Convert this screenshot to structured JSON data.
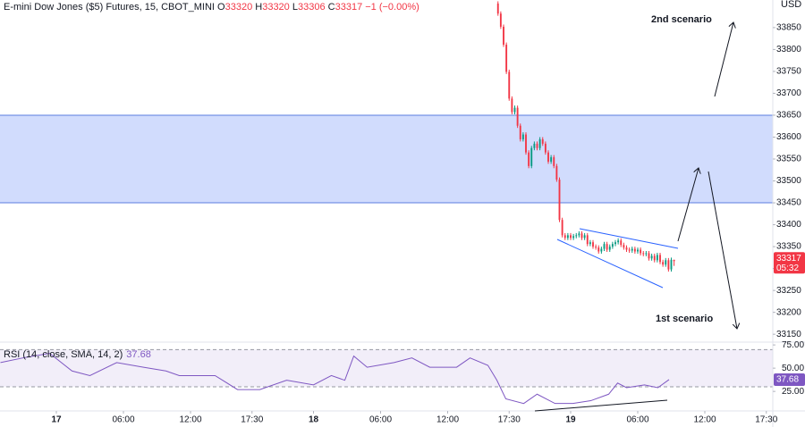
{
  "chart_data": [
    {
      "type": "candlestick",
      "title": "E-mini Dow Jones ($5) Futures, 15, CBOT_MINI",
      "ohlc_labels": [
        "O",
        "H",
        "L",
        "C"
      ],
      "change": "−1 (−0.00%)",
      "currency": "USD",
      "countdown": "05:32",
      "annotations": [
        "2nd scenario",
        "1st scenario"
      ],
      "up_color": "#089981",
      "down_color": "#f23645",
      "zones": [
        {
          "from": 33450,
          "to": 33650,
          "color": "#d1dcfd"
        }
      ],
      "x": [
        39.5,
        39.75,
        40,
        40.25,
        40.5,
        40.75,
        41,
        41.25,
        41.5,
        41.75,
        42,
        42.25,
        42.5,
        42.75,
        43,
        43.25,
        43.5,
        43.75,
        44,
        44.25,
        44.5,
        44.75,
        45,
        45.25,
        45.5,
        45.75,
        46,
        46.25,
        46.5,
        46.75,
        47,
        47.25,
        47.5,
        47.75,
        48,
        48.25,
        48.5,
        48.75,
        49,
        49.25,
        49.5,
        49.75,
        50,
        50.25,
        50.5,
        50.75,
        51,
        51.25,
        51.5,
        51.75,
        52,
        52.25,
        52.5,
        52.75,
        53,
        53.25,
        53.5,
        53.75,
        54,
        54.25,
        54.5,
        54.75,
        55,
        55.25
      ],
      "open": [
        33905,
        33882,
        33852,
        33811,
        33749,
        33688,
        33657,
        33667,
        33626,
        33595,
        33606,
        33565,
        33534,
        33575,
        33585,
        33575,
        33595,
        33585,
        33565,
        33544,
        33554,
        33534,
        33503,
        33411,
        33376,
        33370,
        33376,
        33370,
        33374,
        33376,
        33380,
        33370,
        33376,
        33356,
        33360,
        33350,
        33348,
        33339,
        33345,
        33356,
        33343,
        33350,
        33356,
        33360,
        33364,
        33354,
        33348,
        33343,
        33341,
        33345,
        33339,
        33343,
        33335,
        33333,
        33335,
        33323,
        33329,
        33319,
        33331,
        33315,
        33309,
        33319,
        33298,
        33320
      ],
      "high": [
        33910,
        33887,
        33857,
        33816,
        33754,
        33693,
        33672,
        33672,
        33631,
        33611,
        33611,
        33570,
        33580,
        33590,
        33590,
        33600,
        33600,
        33590,
        33570,
        33559,
        33559,
        33539,
        33508,
        33416,
        33381,
        33381,
        33381,
        33379,
        33381,
        33385,
        33385,
        33381,
        33381,
        33365,
        33365,
        33355,
        33353,
        33350,
        33361,
        33361,
        33355,
        33361,
        33365,
        33369,
        33369,
        33359,
        33353,
        33348,
        33350,
        33350,
        33348,
        33348,
        33340,
        33340,
        33340,
        33334,
        33334,
        33336,
        33336,
        33320,
        33324,
        33324,
        33325,
        33320
      ],
      "low": [
        33877,
        33847,
        33806,
        33744,
        33683,
        33652,
        33652,
        33621,
        33590,
        33590,
        33560,
        33529,
        33529,
        33570,
        33570,
        33570,
        33580,
        33560,
        33539,
        33539,
        33529,
        33498,
        33406,
        33371,
        33365,
        33365,
        33365,
        33365,
        33369,
        33371,
        33365,
        33365,
        33351,
        33351,
        33345,
        33343,
        33334,
        33334,
        33340,
        33338,
        33338,
        33345,
        33351,
        33355,
        33349,
        33343,
        33338,
        33336,
        33336,
        33334,
        33334,
        33330,
        33328,
        33328,
        33318,
        33318,
        33314,
        33314,
        33310,
        33304,
        33304,
        33293,
        33293,
        33306
      ],
      "close": [
        33882,
        33852,
        33811,
        33749,
        33688,
        33657,
        33667,
        33626,
        33595,
        33606,
        33565,
        33534,
        33575,
        33585,
        33575,
        33595,
        33585,
        33565,
        33544,
        33554,
        33534,
        33503,
        33411,
        33376,
        33370,
        33376,
        33370,
        33374,
        33376,
        33380,
        33370,
        33376,
        33356,
        33360,
        33350,
        33348,
        33339,
        33345,
        33356,
        33343,
        33350,
        33356,
        33360,
        33364,
        33354,
        33348,
        33343,
        33341,
        33345,
        33339,
        33343,
        33335,
        33333,
        33335,
        33323,
        33329,
        33319,
        33331,
        33315,
        33309,
        33319,
        33298,
        33320,
        33317
      ],
      "xlim": [
        -5.04,
        64.08
      ],
      "xticks": [
        {
          "value": 0,
          "label": "17"
        },
        {
          "value": 6,
          "label": "06:00"
        },
        {
          "value": 12,
          "label": "12:00"
        },
        {
          "value": 17.5,
          "label": "17:30"
        },
        {
          "value": 23,
          "label": "18"
        },
        {
          "value": 29,
          "label": "06:00"
        },
        {
          "value": 35,
          "label": "12:00"
        },
        {
          "value": 40.5,
          "label": "17:30"
        },
        {
          "value": 46,
          "label": "19"
        },
        {
          "value": 52,
          "label": "06:00"
        },
        {
          "value": 58,
          "label": "12:00"
        },
        {
          "value": 63.5,
          "label": "17:30"
        }
      ],
      "ylim": [
        33132,
        33913
      ],
      "yticks": [
        33150,
        33200,
        33250,
        33300,
        33350,
        33400,
        33450,
        33500,
        33550,
        33600,
        33650,
        33700,
        33750,
        33800,
        33850
      ]
    },
    {
      "type": "line",
      "title": "RSI (14, close, SMA, 14, 2)",
      "color": "#7e57c2",
      "band": [
        30,
        70
      ],
      "x": [
        -5,
        -3,
        -0.6,
        1.4,
        3,
        5.4,
        7.8,
        9.8,
        11,
        14.2,
        16.2,
        18.2,
        20.6,
        23,
        24.6,
        25.8,
        26.6,
        27.8,
        30.2,
        31.8,
        33.4,
        35.8,
        37,
        38.6,
        39.4,
        40.2,
        41.8,
        43,
        44.6,
        46.2,
        47.8,
        49.4,
        50.2,
        51,
        52.6,
        53.8,
        54.8
      ],
      "values": [
        56,
        61,
        66,
        47,
        42,
        56,
        51,
        47,
        42,
        42,
        27,
        27,
        37,
        32,
        42,
        37,
        63,
        51,
        56,
        61,
        51,
        51,
        61,
        53,
        37,
        17,
        12,
        22,
        12,
        12,
        15,
        22,
        34,
        29,
        32,
        29,
        37.68
      ],
      "xlim": [
        -5.04,
        64.08
      ],
      "ylim": [
        4,
        78
      ],
      "yticks": [
        {
          "value": 75,
          "label": "75.00"
        },
        {
          "value": 50,
          "label": "50.00"
        },
        {
          "value": 25,
          "label": "25.00"
        }
      ]
    }
  ]
}
